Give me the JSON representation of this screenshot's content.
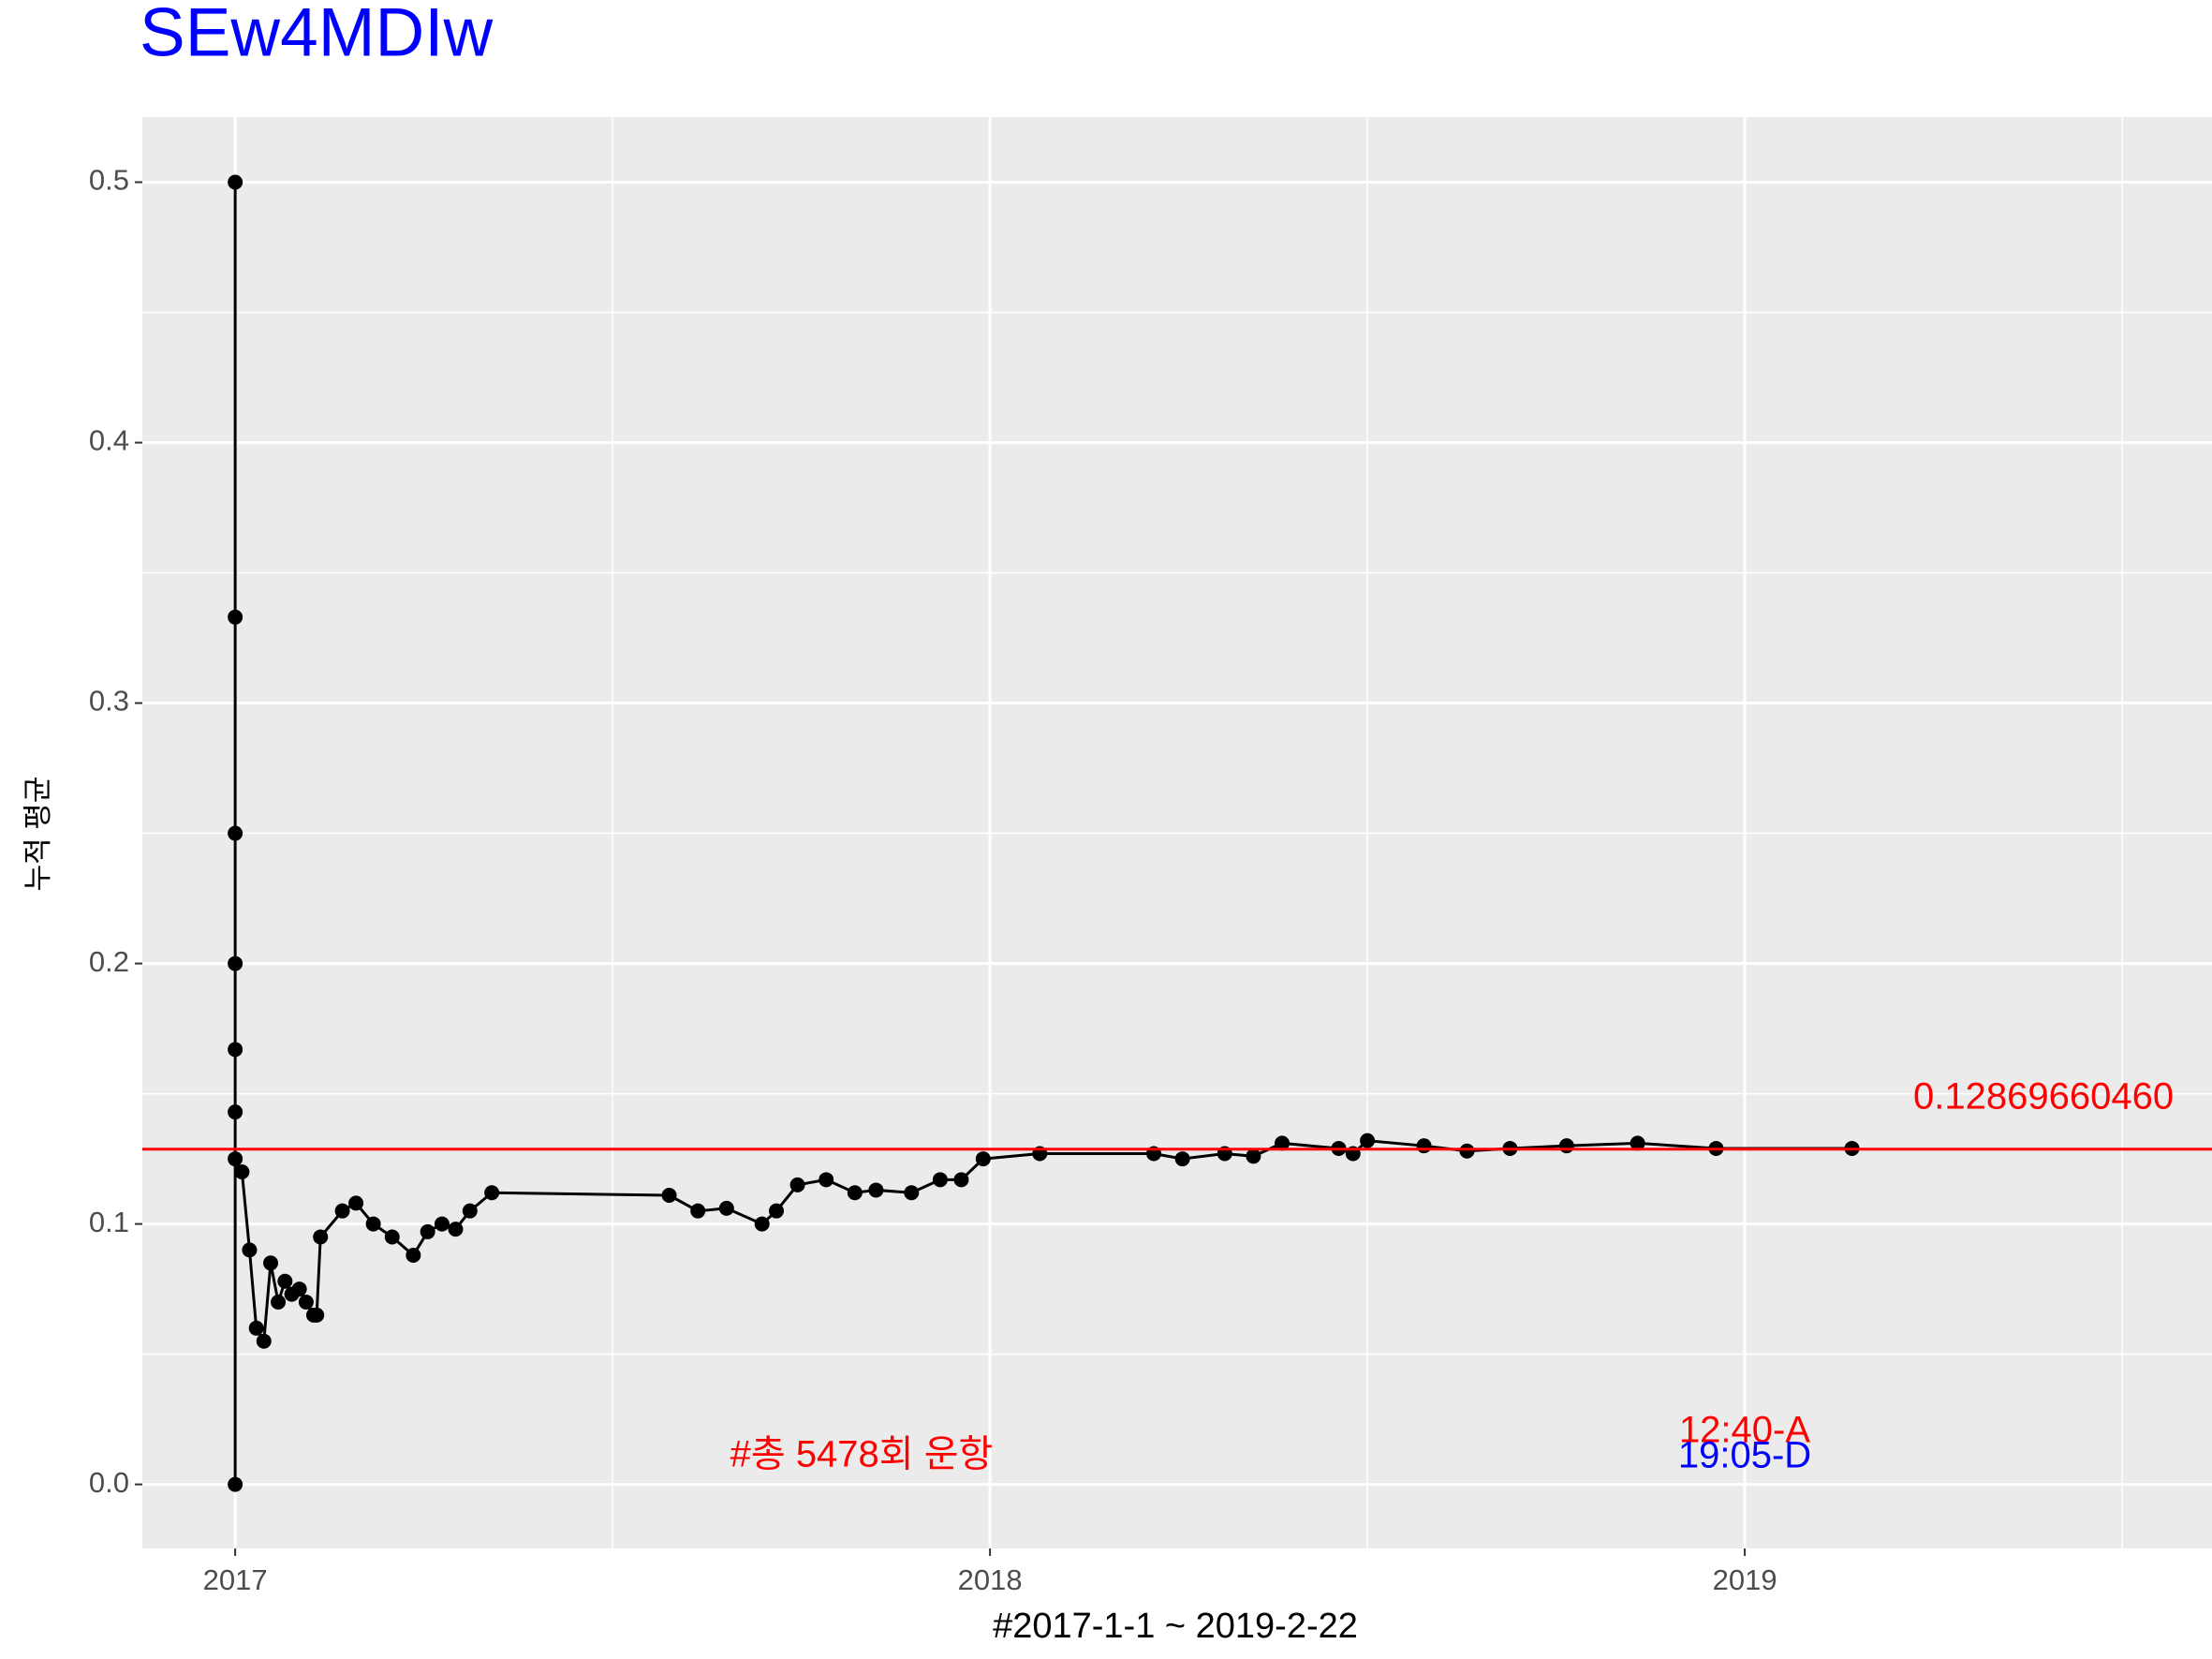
{
  "chart_data": {
    "type": "line",
    "title": "SEw4MDIw",
    "x_label": "#2017-1-1 ~ 2019-2-22",
    "y_label": "누적 평균",
    "x": [
      2017.0,
      2017.0,
      2017.0,
      2017.0,
      2017.0,
      2017.0,
      2017.0,
      2017.0,
      2017.009,
      2017.019,
      2017.028,
      2017.038,
      2017.047,
      2017.057,
      2017.066,
      2017.075,
      2017.085,
      2017.094,
      2017.104,
      2017.108,
      2017.113,
      2017.142,
      2017.16,
      2017.183,
      2017.208,
      2017.236,
      2017.255,
      2017.274,
      2017.292,
      2017.311,
      2017.34,
      2017.575,
      2017.613,
      2017.651,
      2017.698,
      2017.717,
      2017.745,
      2017.783,
      2017.821,
      2017.849,
      2017.896,
      2017.934,
      2017.962,
      2017.991,
      2018.066,
      2018.217,
      2018.255,
      2018.311,
      2018.349,
      2018.387,
      2018.462,
      2018.481,
      2018.5,
      2018.575,
      2018.632,
      2018.689,
      2018.764,
      2018.858,
      2018.962,
      2019.142
    ],
    "values": [
      0,
      0.5,
      0.333,
      0.25,
      0.2,
      0.167,
      0.143,
      0.125,
      0.12,
      0.09,
      0.06,
      0.055,
      0.085,
      0.07,
      0.078,
      0.073,
      0.075,
      0.07,
      0.065,
      0.065,
      0.095,
      0.105,
      0.108,
      0.1,
      0.095,
      0.088,
      0.097,
      0.1,
      0.098,
      0.105,
      0.112,
      0.111,
      0.105,
      0.106,
      0.1,
      0.105,
      0.115,
      0.117,
      0.112,
      0.113,
      0.112,
      0.117,
      0.117,
      0.125,
      0.127,
      0.127,
      0.125,
      0.127,
      0.126,
      0.131,
      0.129,
      0.127,
      0.132,
      0.13,
      0.128,
      0.129,
      0.13,
      0.131,
      0.129,
      0.129
    ],
    "color": "#000000",
    "xlim": [
      2016.877,
      2019.619
    ],
    "ylim": [
      -0.0246,
      0.525
    ],
    "xticks": [
      2017,
      2018,
      2019
    ],
    "yticks": [
      {
        "value": 0,
        "label": "0.0"
      },
      0.1,
      0.2,
      0.3,
      0.4,
      0.5
    ],
    "grid": true,
    "minor_grid": true,
    "hline": {
      "value": 0.1286966046,
      "label": "0.12869660460",
      "color": "#ff0000"
    },
    "annotations": [
      {
        "text": "#총 5478회 운항",
        "color": "#ff0000"
      },
      {
        "text": "12:40-A",
        "color": "#ff0000"
      },
      {
        "text": "19:05-D",
        "color": "#0000ff"
      }
    ]
  }
}
